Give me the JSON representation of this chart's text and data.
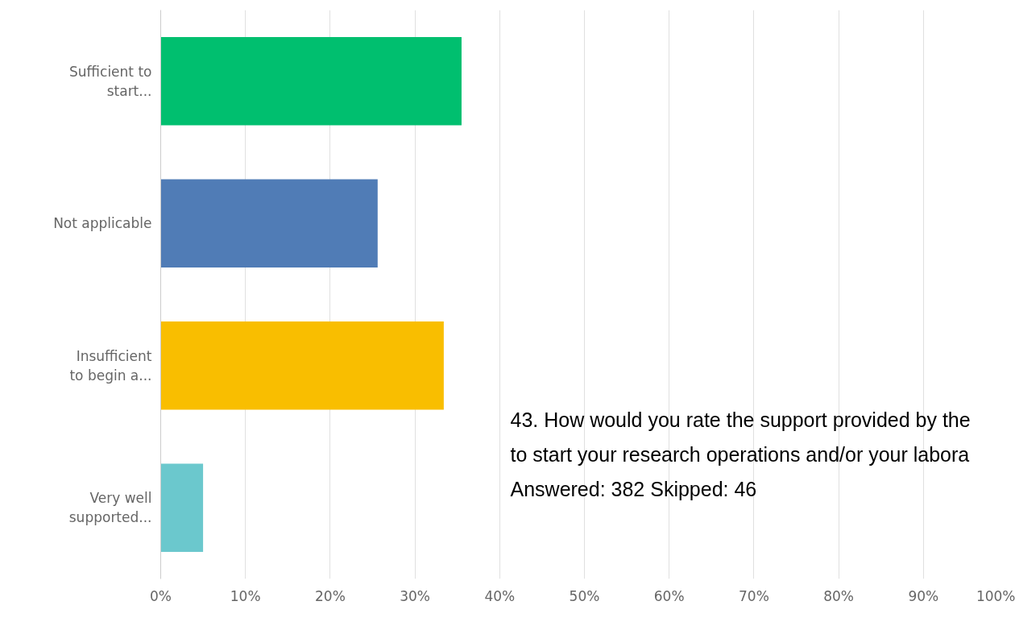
{
  "chart_data": {
    "type": "bar",
    "orientation": "horizontal",
    "categories": [
      "Sufficient to\nstart...",
      "Not applicable",
      "Insufficient\nto begin a...",
      "Very well\nsupported..."
    ],
    "values": [
      35.5,
      25.6,
      33.4,
      5.0
    ],
    "colors": [
      "#00bf6f",
      "#507cb6",
      "#f9be00",
      "#6bc8cd"
    ],
    "xlim": [
      0,
      100
    ],
    "xticks": [
      {
        "value": 0,
        "label": "0%"
      },
      {
        "value": 10,
        "label": "10%"
      },
      {
        "value": 20,
        "label": "20%"
      },
      {
        "value": 30,
        "label": "30%"
      },
      {
        "value": 40,
        "label": "40%"
      },
      {
        "value": 50,
        "label": "50%"
      },
      {
        "value": 60,
        "label": "60%"
      },
      {
        "value": 70,
        "label": "70%"
      },
      {
        "value": 80,
        "label": "80%"
      },
      {
        "value": 90,
        "label": "90%"
      },
      {
        "value": 100,
        "label": "100%"
      }
    ],
    "grid": "x",
    "annotations": [
      "43. How would you rate the support provided by the",
      "to start  your research operations and/or your labora",
      "Answered: 382        Skipped: 46"
    ]
  }
}
